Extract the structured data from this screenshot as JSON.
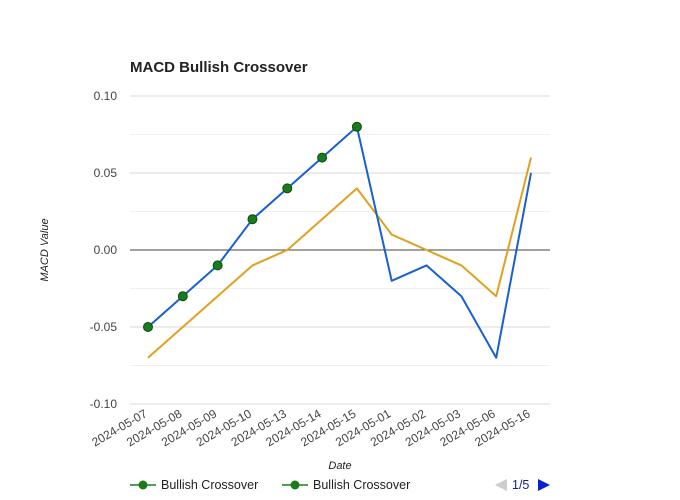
{
  "chart_data": {
    "type": "line",
    "title": "MACD Bullish Crossover",
    "xlabel": "Date",
    "ylabel": "MACD Value",
    "categories": [
      "2024-05-07",
      "2024-05-08",
      "2024-05-09",
      "2024-05-10",
      "2024-05-13",
      "2024-05-14",
      "2024-05-15",
      "2024-05-01",
      "2024-05-02",
      "2024-05-03",
      "2024-05-06",
      "2024-05-16"
    ],
    "ylim": [
      -0.1,
      0.1
    ],
    "yticks": [
      0.1,
      0.05,
      0.0,
      -0.05,
      -0.1
    ],
    "ytick_labels": [
      "0.10",
      "0.05",
      "0.00",
      "-0.05",
      "-0.10"
    ],
    "grid": true,
    "series": [
      {
        "color": "#1a5fd0",
        "values": [
          -0.05,
          -0.03,
          -0.01,
          0.02,
          0.04,
          0.06,
          0.08,
          -0.02,
          -0.01,
          -0.03,
          -0.07,
          0.05
        ]
      },
      {
        "color": "#e0a020",
        "values": [
          -0.07,
          -0.05,
          -0.03,
          -0.01,
          0.0,
          0.02,
          0.04,
          0.01,
          0.0,
          -0.01,
          -0.03,
          0.06
        ]
      }
    ],
    "markers": {
      "color": "#1b7a1b",
      "values": [
        -0.05,
        -0.03,
        -0.01,
        0.02,
        0.04,
        0.06,
        0.08
      ]
    },
    "legend": {
      "position": "bottom",
      "entries": [
        "Bullish Crossover",
        "Bullish Crossover"
      ],
      "pager": "1/5"
    }
  }
}
